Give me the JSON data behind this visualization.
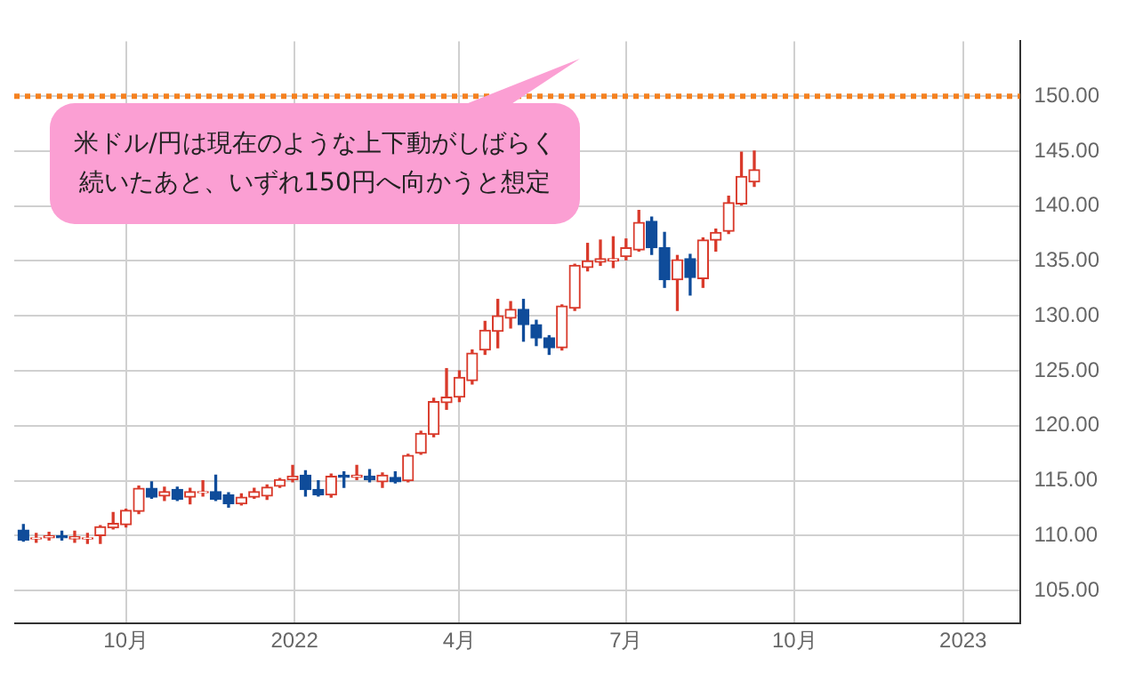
{
  "chart_data": {
    "type": "candlestick",
    "x": [
      "2021-08-06",
      "2021-08-13",
      "2021-08-20",
      "2021-08-27",
      "2021-09-03",
      "2021-09-10",
      "2021-09-17",
      "2021-09-24",
      "2021-10-01",
      "2021-10-08",
      "2021-10-15",
      "2021-10-22",
      "2021-10-29",
      "2021-11-05",
      "2021-11-12",
      "2021-11-19",
      "2021-11-26",
      "2021-12-03",
      "2021-12-10",
      "2021-12-17",
      "2021-12-24",
      "2021-12-31",
      "2022-01-07",
      "2022-01-14",
      "2022-01-21",
      "2022-01-28",
      "2022-02-04",
      "2022-02-11",
      "2022-02-18",
      "2022-02-25",
      "2022-03-04",
      "2022-03-11",
      "2022-03-18",
      "2022-03-25",
      "2022-04-01",
      "2022-04-08",
      "2022-04-15",
      "2022-04-22",
      "2022-04-29",
      "2022-05-06",
      "2022-05-13",
      "2022-05-20",
      "2022-05-27",
      "2022-06-03",
      "2022-06-10",
      "2022-06-17",
      "2022-06-24",
      "2022-07-01",
      "2022-07-08",
      "2022-07-15",
      "2022-07-22",
      "2022-07-29",
      "2022-08-05",
      "2022-08-12",
      "2022-08-19",
      "2022-08-26",
      "2022-09-02",
      "2022-09-09"
    ],
    "ohlc": [
      [
        110.5,
        111.0,
        109.5,
        109.6
      ],
      [
        109.7,
        110.2,
        109.4,
        109.8
      ],
      [
        109.8,
        110.3,
        109.6,
        110.0
      ],
      [
        110.0,
        110.4,
        109.6,
        109.8
      ],
      [
        109.7,
        110.4,
        109.4,
        109.9
      ],
      [
        109.7,
        110.2,
        109.3,
        109.8
      ],
      [
        110.0,
        110.9,
        109.3,
        110.8
      ],
      [
        110.7,
        112.1,
        110.6,
        111.1
      ],
      [
        111.0,
        112.4,
        110.8,
        112.3
      ],
      [
        112.2,
        114.5,
        112.0,
        114.3
      ],
      [
        114.3,
        114.9,
        113.4,
        113.5
      ],
      [
        113.6,
        114.4,
        113.2,
        114.0
      ],
      [
        114.2,
        114.4,
        113.2,
        113.3
      ],
      [
        113.5,
        114.3,
        112.9,
        114.0
      ],
      [
        113.9,
        115.0,
        113.6,
        114.0
      ],
      [
        114.0,
        115.5,
        113.2,
        113.3
      ],
      [
        113.7,
        113.9,
        112.6,
        112.9
      ],
      [
        112.9,
        113.8,
        112.8,
        113.5
      ],
      [
        113.5,
        114.3,
        113.4,
        114.0
      ],
      [
        113.6,
        114.6,
        113.3,
        114.4
      ],
      [
        114.5,
        115.2,
        114.4,
        115.1
      ],
      [
        115.1,
        116.4,
        114.9,
        115.4
      ],
      [
        115.5,
        115.9,
        113.6,
        114.2
      ],
      [
        114.2,
        115.0,
        113.6,
        113.7
      ],
      [
        113.7,
        115.6,
        113.5,
        115.4
      ],
      [
        115.5,
        115.8,
        114.4,
        115.3
      ],
      [
        115.3,
        116.4,
        115.1,
        115.5
      ],
      [
        115.4,
        116.0,
        114.9,
        115.1
      ],
      [
        114.9,
        115.7,
        114.4,
        115.5
      ],
      [
        115.3,
        115.8,
        114.8,
        114.9
      ],
      [
        115.0,
        117.4,
        114.9,
        117.3
      ],
      [
        117.5,
        119.5,
        117.4,
        119.3
      ],
      [
        119.2,
        122.5,
        119.0,
        122.2
      ],
      [
        122.1,
        125.2,
        121.5,
        122.6
      ],
      [
        122.6,
        125.0,
        122.2,
        124.4
      ],
      [
        124.1,
        126.9,
        123.8,
        126.6
      ],
      [
        126.9,
        129.5,
        126.5,
        128.7
      ],
      [
        128.6,
        131.5,
        127.1,
        130.0
      ],
      [
        129.8,
        131.3,
        128.9,
        130.6
      ],
      [
        130.6,
        131.5,
        127.7,
        129.2
      ],
      [
        129.2,
        129.6,
        127.3,
        128.0
      ],
      [
        128.0,
        128.2,
        126.5,
        127.1
      ],
      [
        127.1,
        131.0,
        126.9,
        130.9
      ],
      [
        130.7,
        134.7,
        130.5,
        134.6
      ],
      [
        134.4,
        136.6,
        134.1,
        135.0
      ],
      [
        134.9,
        136.9,
        134.6,
        135.2
      ],
      [
        135.0,
        137.2,
        134.4,
        135.2
      ],
      [
        135.4,
        137.0,
        135.1,
        136.2
      ],
      [
        136.0,
        139.6,
        135.9,
        138.5
      ],
      [
        138.6,
        139.0,
        135.6,
        136.2
      ],
      [
        136.2,
        137.6,
        132.6,
        133.3
      ],
      [
        133.3,
        135.5,
        130.5,
        135.1
      ],
      [
        135.2,
        135.6,
        131.9,
        133.5
      ],
      [
        133.4,
        137.1,
        132.6,
        136.9
      ],
      [
        136.9,
        137.9,
        135.9,
        137.6
      ],
      [
        137.7,
        140.9,
        137.5,
        140.3
      ],
      [
        140.2,
        144.9,
        140.1,
        142.7
      ],
      [
        142.2,
        145.0,
        141.8,
        143.3
      ]
    ],
    "colors": [
      "#0f4c9a",
      "#d93a2b",
      "#d93a2b",
      "#0f4c9a",
      "#d93a2b",
      "#d93a2b",
      "#d93a2b",
      "#d93a2b",
      "#d93a2b",
      "#d93a2b",
      "#0f4c9a",
      "#d93a2b",
      "#0f4c9a",
      "#d93a2b",
      "#d93a2b",
      "#0f4c9a",
      "#0f4c9a",
      "#d93a2b",
      "#d93a2b",
      "#d93a2b",
      "#d93a2b",
      "#d93a2b",
      "#0f4c9a",
      "#0f4c9a",
      "#d93a2b",
      "#0f4c9a",
      "#d93a2b",
      "#0f4c9a",
      "#d93a2b",
      "#0f4c9a",
      "#d93a2b",
      "#d93a2b",
      "#d93a2b",
      "#d93a2b",
      "#d93a2b",
      "#d93a2b",
      "#d93a2b",
      "#d93a2b",
      "#d93a2b",
      "#0f4c9a",
      "#0f4c9a",
      "#0f4c9a",
      "#d93a2b",
      "#d93a2b",
      "#d93a2b",
      "#d93a2b",
      "#d93a2b",
      "#d93a2b",
      "#d93a2b",
      "#0f4c9a",
      "#0f4c9a",
      "#d93a2b",
      "#0f4c9a",
      "#d93a2b",
      "#d93a2b",
      "#d93a2b",
      "#d93a2b",
      "#d93a2b"
    ],
    "xlim": [
      "2021-08-01",
      "2023-02-01"
    ],
    "xticks": [
      {
        "value": "2021-10-01",
        "label": "10月"
      },
      {
        "value": "2022-01-01",
        "label": "2022"
      },
      {
        "value": "2022-04-01",
        "label": "4月"
      },
      {
        "value": "2022-07-01",
        "label": "7月"
      },
      {
        "value": "2022-10-01",
        "label": "10月"
      },
      {
        "value": "2023-01-01",
        "label": "2023"
      }
    ],
    "ylim": [
      102,
      155
    ],
    "yticks": [
      {
        "value": 105,
        "label": "105.00"
      },
      {
        "value": 110,
        "label": "110.00"
      },
      {
        "value": 115,
        "label": "115.00"
      },
      {
        "value": 120,
        "label": "120.00"
      },
      {
        "value": 125,
        "label": "125.00"
      },
      {
        "value": 130,
        "label": "130.00"
      },
      {
        "value": 135,
        "label": "135.00"
      },
      {
        "value": 140,
        "label": "140.00"
      },
      {
        "value": 145,
        "label": "145.00"
      },
      {
        "value": 150,
        "label": "150.00"
      }
    ],
    "ref_lines": [
      {
        "axis": "y",
        "value": 150,
        "color": "#f5811f",
        "line_style": "dotted"
      }
    ],
    "annotations": [
      "米ドル/円は現在のような上下動がしばらく続いたあと、いずれ150円へ向かうと想定"
    ],
    "grid": true,
    "legend": false
  }
}
